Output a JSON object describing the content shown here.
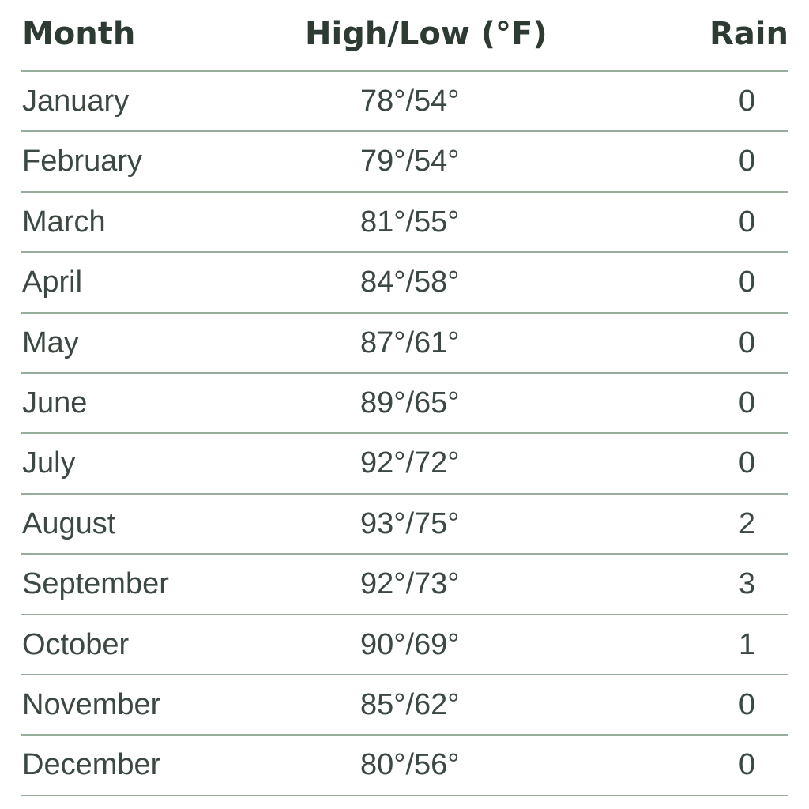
{
  "chart_data": {
    "type": "table",
    "columns": [
      "Month",
      "High/Low (°F)",
      "Rain"
    ],
    "rows": [
      [
        "January",
        "78°/54°",
        "0"
      ],
      [
        "February",
        "79°/54°",
        "0"
      ],
      [
        "March",
        "81°/55°",
        "0"
      ],
      [
        "April",
        "84°/58°",
        "0"
      ],
      [
        "May",
        "87°/61°",
        "0"
      ],
      [
        "June",
        "89°/65°",
        "0"
      ],
      [
        "July",
        "92°/72°",
        "0"
      ],
      [
        "August",
        "93°/75°",
        "2"
      ],
      [
        "September",
        "92°/73°",
        "3"
      ],
      [
        "October",
        "90°/69°",
        "1"
      ],
      [
        "November",
        "85°/62°",
        "0"
      ],
      [
        "December",
        "80°/56°",
        "0"
      ]
    ]
  },
  "colors": {
    "header_text": "#2d3b33",
    "body_text": "#3c4942",
    "rule": "#98ad9c"
  }
}
